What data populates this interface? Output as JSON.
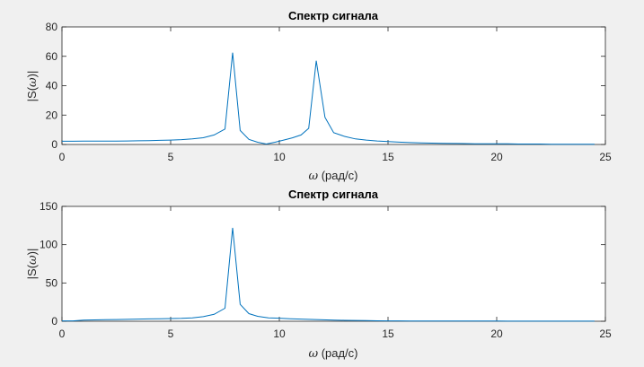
{
  "chart_data": [
    {
      "type": "line",
      "title": "Спектр сигнала",
      "xlabel_symbol": "ω",
      "xlabel_rest": " (рад/с)",
      "ylabel_pre": "|S(",
      "ylabel_symbol": "ω",
      "ylabel_post": ")|",
      "xlim": [
        0,
        25
      ],
      "ylim": [
        0,
        80
      ],
      "xticks": [
        0,
        5,
        10,
        15,
        20,
        25
      ],
      "yticks": [
        0,
        20,
        40,
        60,
        80
      ],
      "grid": false,
      "color": "#0072bd",
      "x": [
        0,
        0.5,
        1,
        1.5,
        2,
        2.5,
        3,
        3.5,
        4,
        4.5,
        5,
        5.5,
        6,
        6.5,
        7,
        7.5,
        7.85,
        8.2,
        8.6,
        9,
        9.4,
        9.8,
        10.2,
        10.6,
        11,
        11.35,
        11.7,
        12.1,
        12.5,
        13,
        13.5,
        14,
        14.5,
        15,
        15.5,
        16,
        16.5,
        17,
        17.5,
        18,
        18.5,
        19,
        19.5,
        20,
        20.5,
        21,
        21.5,
        22,
        22.5,
        23,
        23.5,
        24,
        24.5
      ],
      "y": [
        2.2,
        2.2,
        2.3,
        2.3,
        2.3,
        2.3,
        2.4,
        2.5,
        2.6,
        2.8,
        3.0,
        3.3,
        3.8,
        4.6,
        6.5,
        10.5,
        62.5,
        9.5,
        3.5,
        1.5,
        0.3,
        1.5,
        3.0,
        4.5,
        6.5,
        11.0,
        57.0,
        18.5,
        8.0,
        5.5,
        3.8,
        3.0,
        2.4,
        2.0,
        1.6,
        1.3,
        1.1,
        0.9,
        0.8,
        0.7,
        0.6,
        0.5,
        0.5,
        0.4,
        0.4,
        0.3,
        0.3,
        0.3,
        0.2,
        0.2,
        0.2,
        0.2,
        0.1
      ]
    },
    {
      "type": "line",
      "title": "Спектр сигнала",
      "xlabel_symbol": "ω",
      "xlabel_rest": " (рад/с)",
      "ylabel_pre": "|S(",
      "ylabel_symbol": "ω",
      "ylabel_post": ")|",
      "xlim": [
        0,
        25
      ],
      "ylim": [
        0,
        150
      ],
      "xticks": [
        0,
        5,
        10,
        15,
        20,
        25
      ],
      "yticks": [
        0,
        50,
        100,
        150
      ],
      "grid": false,
      "color": "#0072bd",
      "x": [
        0,
        0.5,
        1,
        1.5,
        2,
        2.5,
        3,
        3.5,
        4,
        4.5,
        5,
        5.5,
        6,
        6.5,
        7,
        7.5,
        7.85,
        8.2,
        8.6,
        9,
        9.5,
        10,
        10.5,
        11,
        11.5,
        12,
        12.5,
        13,
        13.5,
        14,
        14.5,
        15,
        15.5,
        16,
        16.5,
        17,
        17.5,
        18,
        18.5,
        19,
        19.5,
        20,
        20.5,
        21,
        21.5,
        22,
        22.5,
        23,
        23.5,
        24,
        24.5
      ],
      "y": [
        0.5,
        0.5,
        1.5,
        1.8,
        2.0,
        2.2,
        2.5,
        2.8,
        3.0,
        3.2,
        3.5,
        3.8,
        4.5,
        6.0,
        9.0,
        17.0,
        122.0,
        22.0,
        10.0,
        6.5,
        4.5,
        4.0,
        3.3,
        2.8,
        2.3,
        1.9,
        1.5,
        1.2,
        1.0,
        0.8,
        0.6,
        0.5,
        0.5,
        0.4,
        0.4,
        0.3,
        0.3,
        0.3,
        0.2,
        0.2,
        0.2,
        0.2,
        0.1,
        0.1,
        0.1,
        0.1,
        0.1,
        0.1,
        0.1,
        0.1,
        0.1
      ]
    }
  ]
}
